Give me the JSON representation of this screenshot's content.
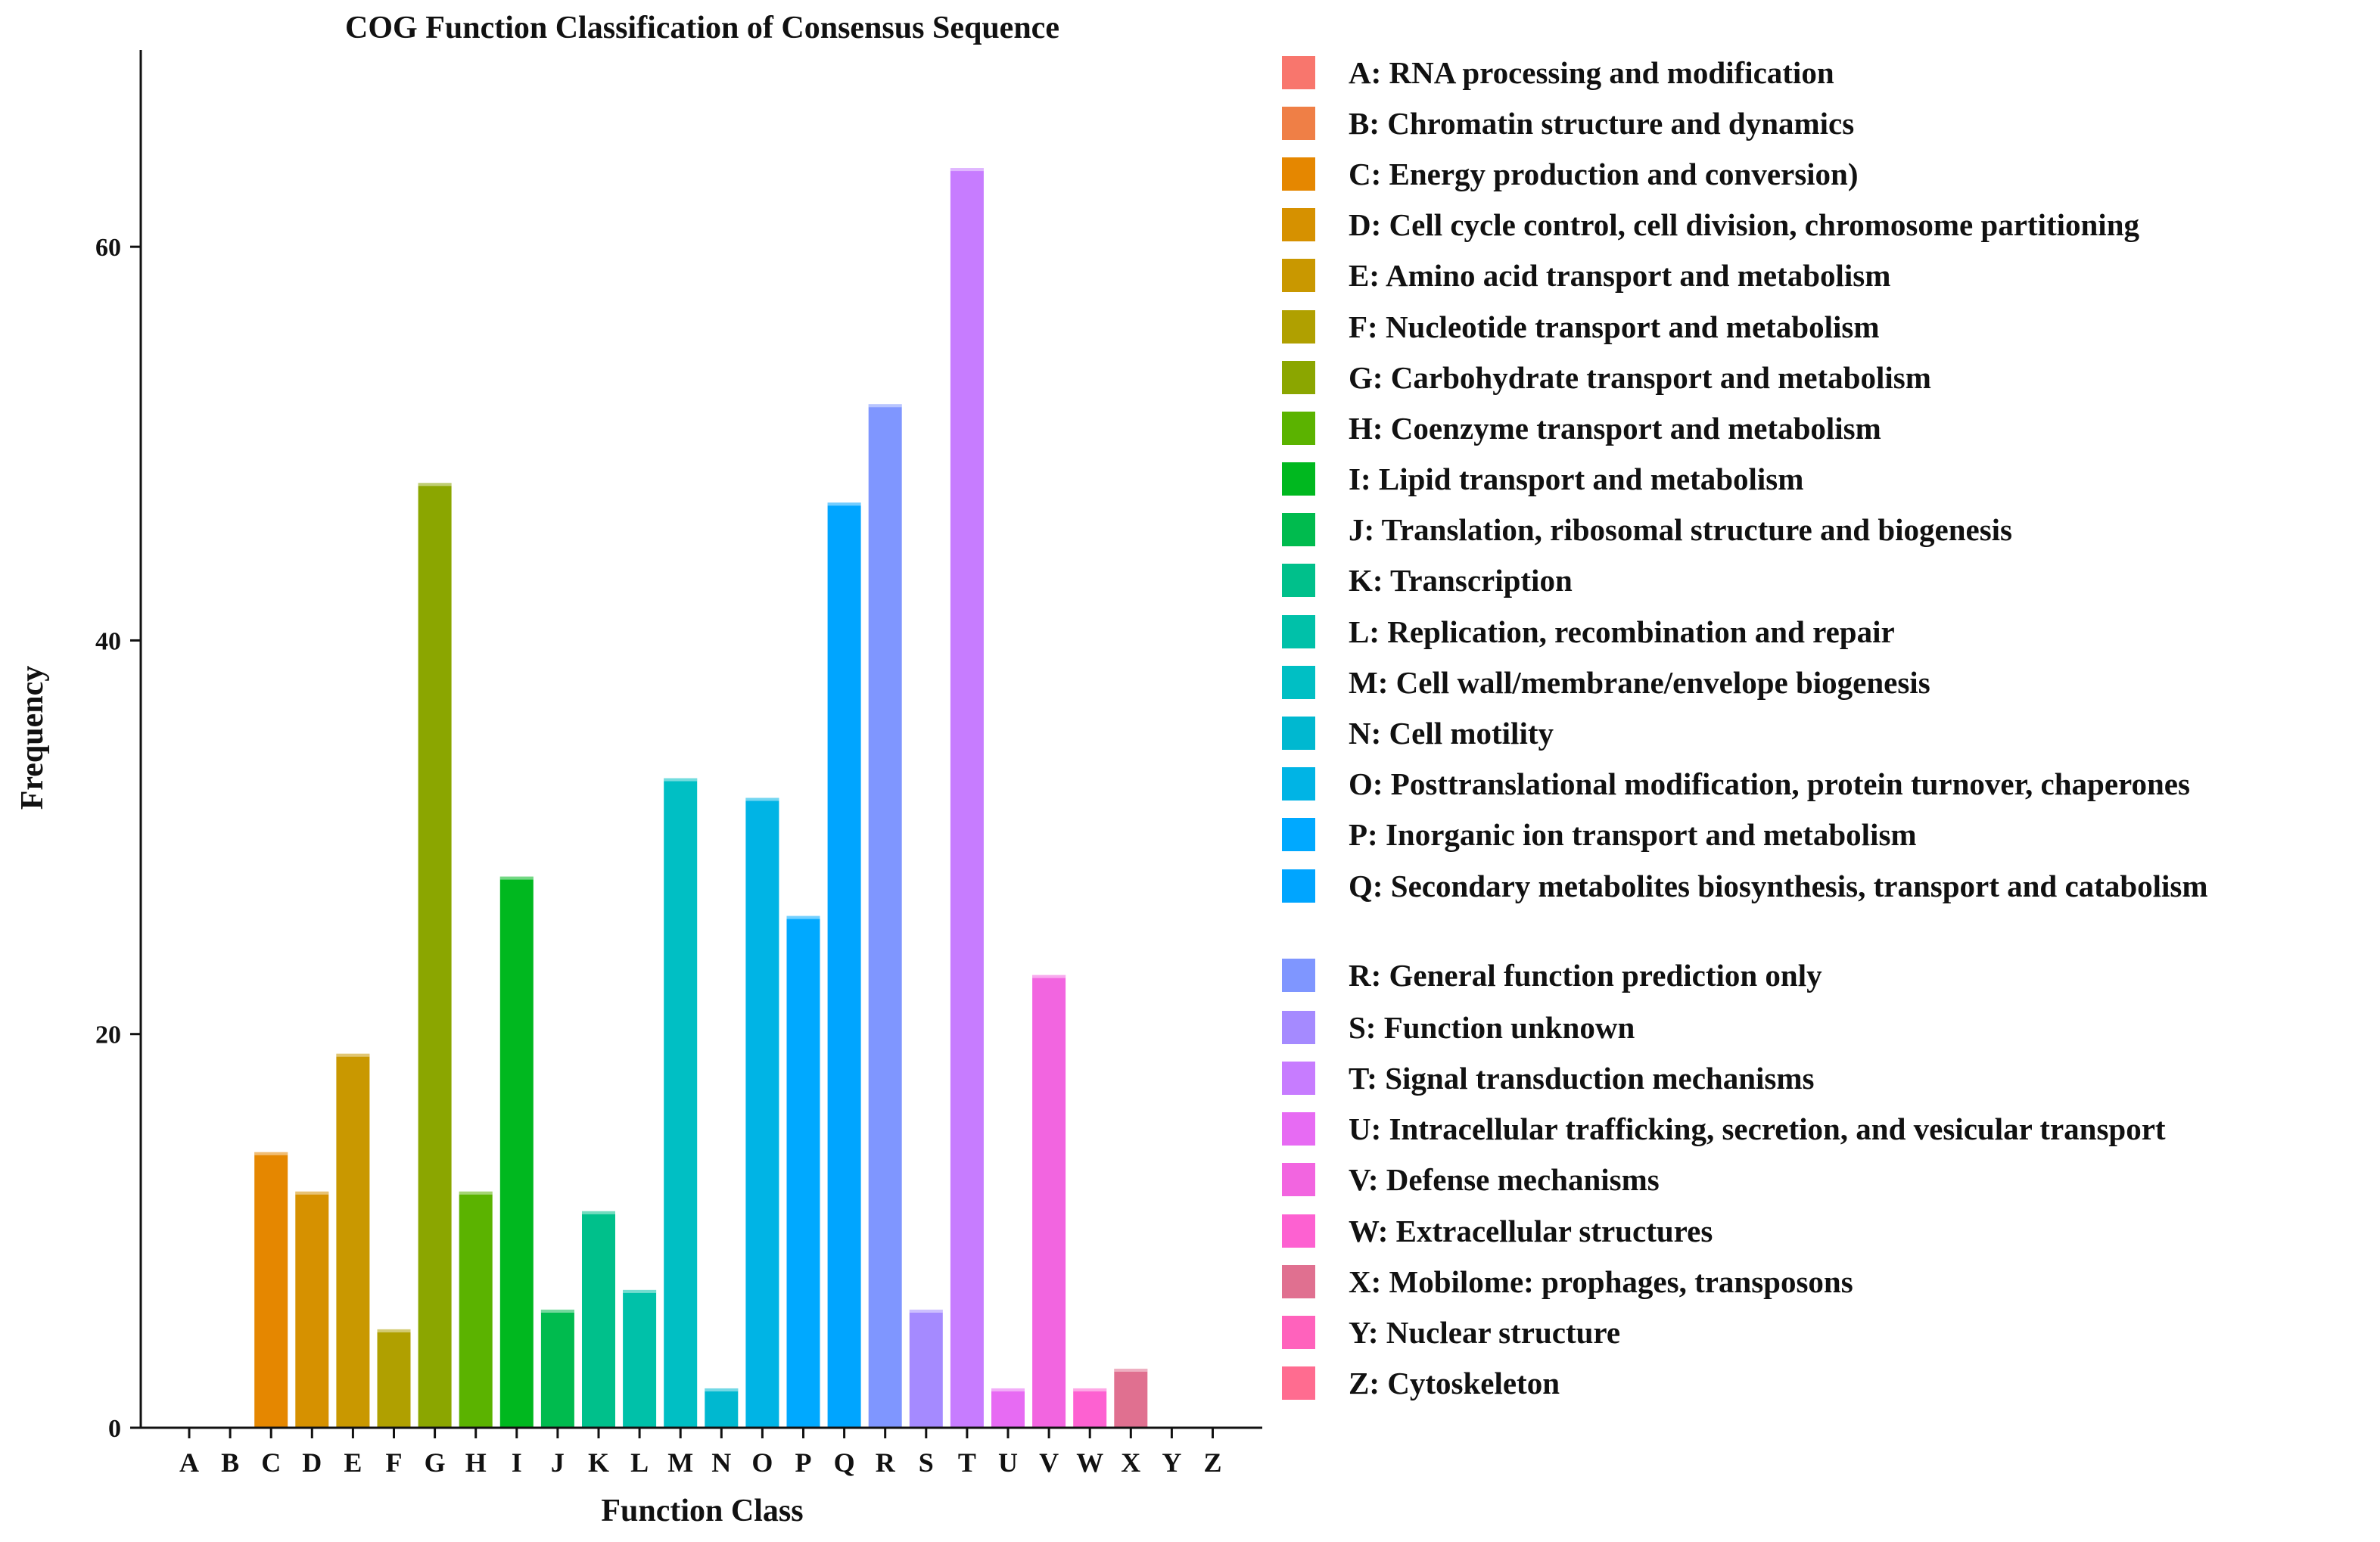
{
  "chart_data": {
    "type": "bar",
    "title": "COG Function Classification of Consensus Sequence",
    "xlabel": "Function Class",
    "ylabel": "Frequency",
    "ylim": [
      0,
      70
    ],
    "yticks": [
      0,
      20,
      40,
      60
    ],
    "grid": false,
    "categories": [
      "A",
      "B",
      "C",
      "D",
      "E",
      "F",
      "G",
      "H",
      "I",
      "J",
      "K",
      "L",
      "M",
      "N",
      "O",
      "P",
      "Q",
      "R",
      "S",
      "T",
      "U",
      "V",
      "W",
      "X",
      "Y",
      "Z"
    ],
    "values": [
      0,
      0,
      14,
      12,
      19,
      5,
      48,
      12,
      28,
      6,
      11,
      7,
      33,
      2,
      32,
      26,
      47,
      52,
      6,
      64,
      2,
      23,
      2,
      3,
      0,
      0
    ],
    "colors": [
      "#f8766d",
      "#ef7f46",
      "#e58700",
      "#d69100",
      "#c99800",
      "#b0a000",
      "#8ba600",
      "#5bb300",
      "#00b81f",
      "#00bb4e",
      "#00c08b",
      "#00c1a9",
      "#00bfc4",
      "#00b8d0",
      "#00b4e5",
      "#00a9ff",
      "#00a5ff",
      "#7f96ff",
      "#a58aff",
      "#c77cff",
      "#e76bf3",
      "#f265e0",
      "#fd61d1",
      "#e07090",
      "#ff62bc",
      "#ff6c90"
    ],
    "legend": [
      {
        "code": "A",
        "label": "A: RNA processing and modification"
      },
      {
        "code": "B",
        "label": "B: Chromatin structure and dynamics"
      },
      {
        "code": "C",
        "label": "C: Energy production and conversion)"
      },
      {
        "code": "D",
        "label": "D: Cell cycle control, cell division, chromosome partitioning"
      },
      {
        "code": "E",
        "label": "E: Amino acid transport and metabolism"
      },
      {
        "code": "F",
        "label": "F: Nucleotide transport and metabolism"
      },
      {
        "code": "G",
        "label": "G: Carbohydrate transport and metabolism"
      },
      {
        "code": "H",
        "label": "H: Coenzyme transport and metabolism"
      },
      {
        "code": "I",
        "label": "I: Lipid transport and metabolism"
      },
      {
        "code": "J",
        "label": "J: Translation, ribosomal structure and biogenesis"
      },
      {
        "code": "K",
        "label": "K: Transcription"
      },
      {
        "code": "L",
        "label": "L: Replication, recombination and repair"
      },
      {
        "code": "M",
        "label": "M: Cell wall/membrane/envelope biogenesis"
      },
      {
        "code": "N",
        "label": "N: Cell motility"
      },
      {
        "code": "O",
        "label": "O: Posttranslational modification, protein turnover, chaperones"
      },
      {
        "code": "P",
        "label": "P: Inorganic ion transport and metabolism"
      },
      {
        "code": "Q",
        "label": "Q: Secondary metabolites biosynthesis, transport and catabolism"
      },
      {
        "code": "R",
        "label": "R: General function prediction only"
      },
      {
        "code": "S",
        "label": "S: Function unknown"
      },
      {
        "code": "T",
        "label": "T: Signal transduction mechanisms"
      },
      {
        "code": "U",
        "label": "U: Intracellular trafficking, secretion, and vesicular transport"
      },
      {
        "code": "V",
        "label": "V: Defense mechanisms"
      },
      {
        "code": "W",
        "label": "W: Extracellular structures"
      },
      {
        "code": "X",
        "label": "X: Mobilome: prophages, transposons"
      },
      {
        "code": "Y",
        "label": "Y: Nuclear structure"
      },
      {
        "code": "Z",
        "label": "Z: Cytoskeleton"
      }
    ]
  }
}
